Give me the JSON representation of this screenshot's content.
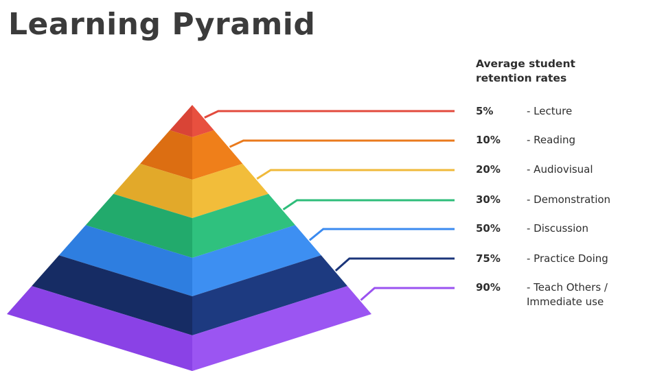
{
  "title": "Learning Pyramid",
  "legend_heading": [
    "Average student",
    "retention rates"
  ],
  "levels": [
    {
      "percent": "5%",
      "text": "- Lecture",
      "text2": "",
      "color_left": "#d94436",
      "color_right": "#e8503f",
      "line": "#e24a3d"
    },
    {
      "percent": "10%",
      "text": "- Reading",
      "text2": "",
      "color_left": "#dc6e12",
      "color_right": "#ef7f1a",
      "line": "#ea7a1c"
    },
    {
      "percent": "20%",
      "text": "- Audiovisual",
      "text2": "",
      "color_left": "#e2a92a",
      "color_right": "#f2bd3a",
      "line": "#f0b93a"
    },
    {
      "percent": "30%",
      "text": "- Demonstration",
      "text2": "",
      "color_left": "#22aa6c",
      "color_right": "#2fc17e",
      "line": "#2ebd7a"
    },
    {
      "percent": "50%",
      "text": "- Discussion",
      "text2": "",
      "color_left": "#2e7ee0",
      "color_right": "#3d8ff2",
      "line": "#3a8af0"
    },
    {
      "percent": "75%",
      "text": "- Practice Doing",
      "text2": "",
      "color_left": "#162c64",
      "color_right": "#1d3a80",
      "line": "#1b357a"
    },
    {
      "percent": "90%",
      "text": "- Teach Others /",
      "text2": "Immediate use",
      "color_left": "#8a42e6",
      "color_right": "#9b55f2",
      "line": "#9a52f0"
    }
  ]
}
